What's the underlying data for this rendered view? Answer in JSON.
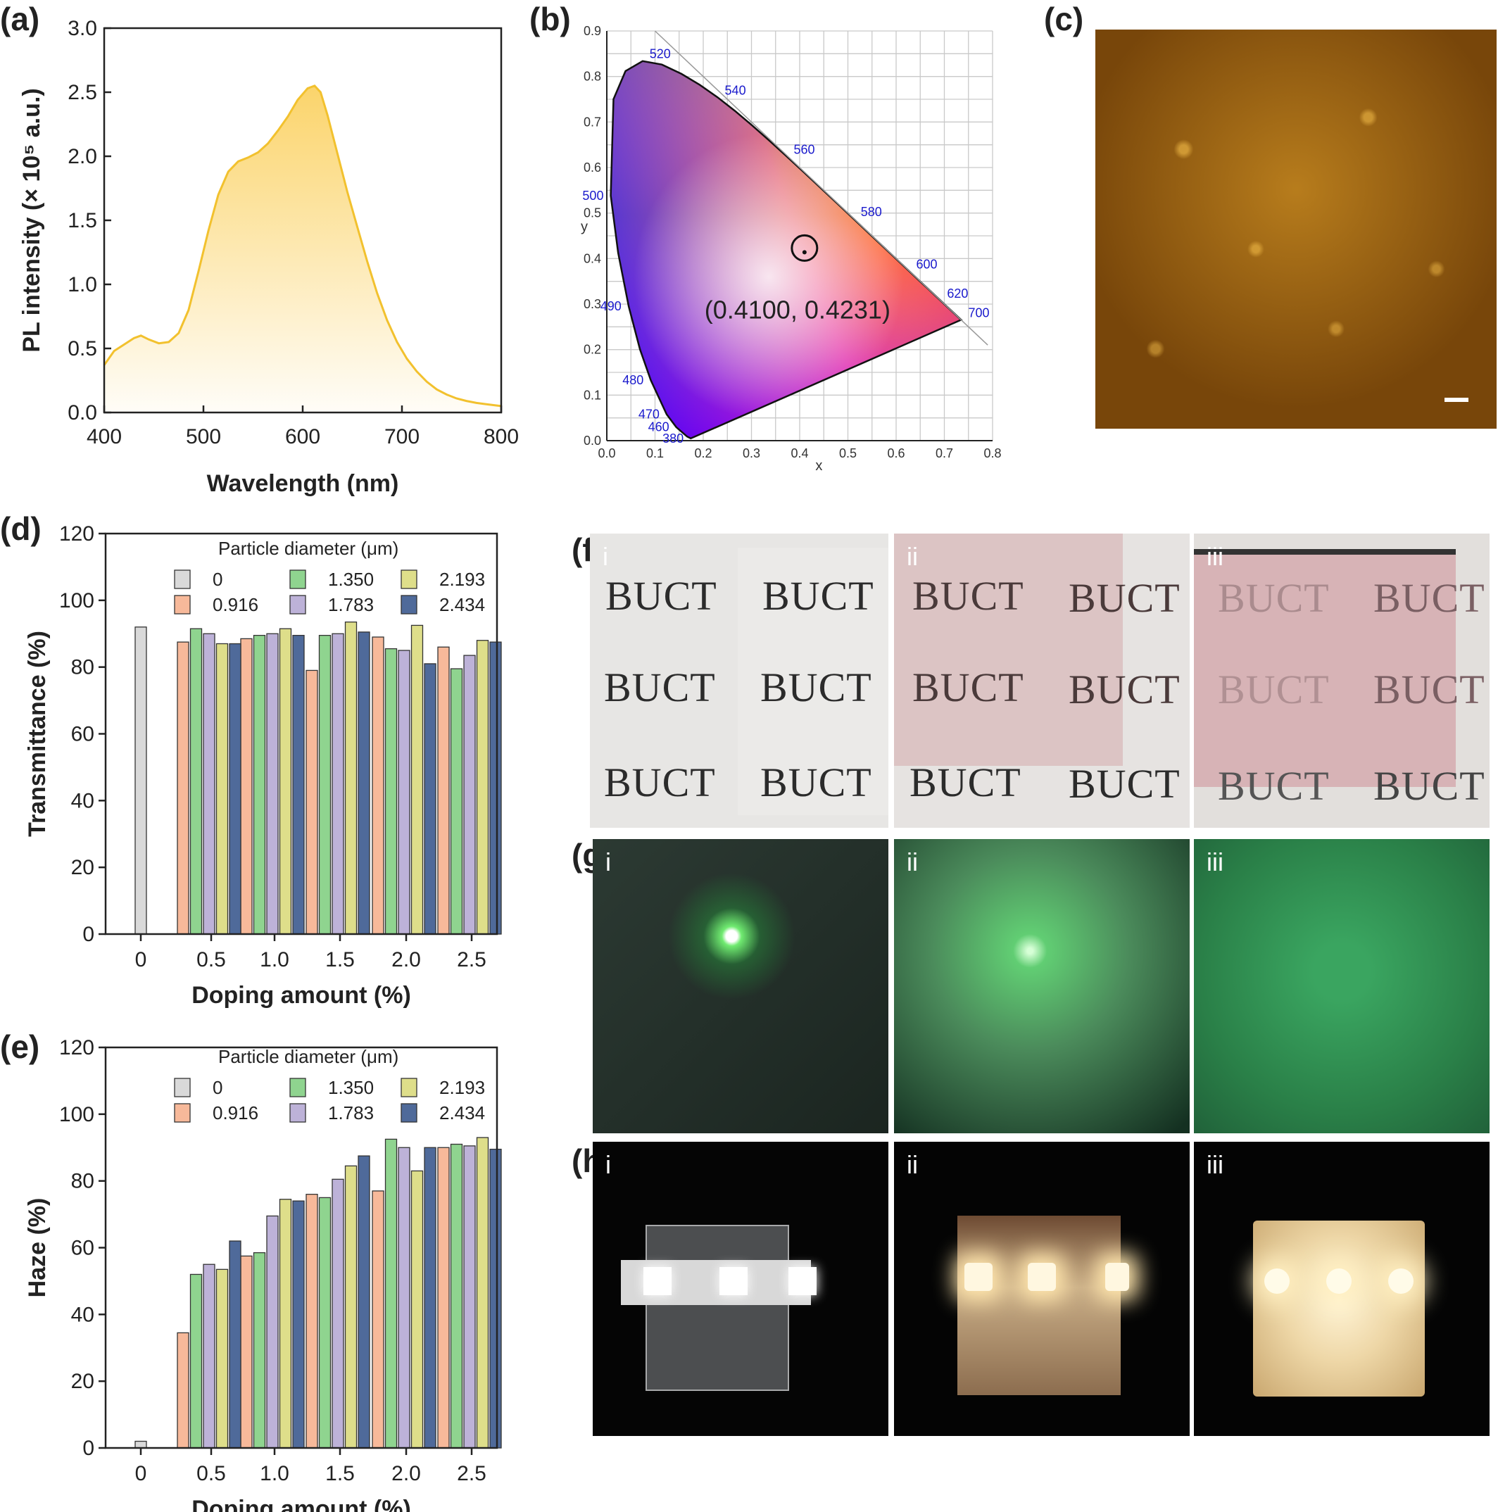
{
  "panels": {
    "a": "(a)",
    "b": "(b)",
    "c": "(c)",
    "d": "(d)",
    "e": "(e)",
    "f": "(f)",
    "g": "(g)",
    "h": "(h)"
  },
  "chart_data": [
    {
      "panel": "a",
      "type": "area",
      "xlabel": "Wavelength (nm)",
      "ylabel": "PL intensity (× 10⁵ a.u.)",
      "xlim": [
        400,
        800
      ],
      "ylim": [
        0,
        3.0
      ],
      "x_ticks": [
        "400",
        "500",
        "600",
        "700",
        "800"
      ],
      "y_ticks": [
        "0.0",
        "0.5",
        "1.0",
        "1.5",
        "2.0",
        "2.5",
        "3.0"
      ],
      "x": [
        400,
        410,
        420,
        430,
        437,
        445,
        455,
        465,
        475,
        485,
        495,
        505,
        515,
        525,
        535,
        545,
        555,
        565,
        575,
        585,
        595,
        605,
        612,
        618,
        625,
        635,
        645,
        655,
        665,
        675,
        685,
        695,
        705,
        715,
        725,
        735,
        745,
        755,
        765,
        775,
        785,
        800
      ],
      "y": [
        0.37,
        0.48,
        0.53,
        0.58,
        0.6,
        0.57,
        0.54,
        0.55,
        0.62,
        0.8,
        1.1,
        1.42,
        1.7,
        1.88,
        1.96,
        1.99,
        2.03,
        2.1,
        2.2,
        2.31,
        2.44,
        2.53,
        2.55,
        2.5,
        2.32,
        2.02,
        1.72,
        1.45,
        1.18,
        0.93,
        0.72,
        0.55,
        0.42,
        0.32,
        0.24,
        0.18,
        0.14,
        0.11,
        0.09,
        0.075,
        0.065,
        0.05
      ],
      "line_color": "#f2c12e",
      "fill_color": "#fbd46b",
      "grid": false
    },
    {
      "panel": "b",
      "type": "scatter",
      "xlabel": "x",
      "ylabel": "y",
      "xlim": [
        0.0,
        0.8
      ],
      "ylim": [
        0.0,
        0.9
      ],
      "x_ticks": [
        "0.0",
        "0.1",
        "0.2",
        "0.3",
        "0.4",
        "0.5",
        "0.6",
        "0.7",
        "0.8"
      ],
      "y_ticks": [
        "0.0",
        "0.1",
        "0.2",
        "0.3",
        "0.4",
        "0.5",
        "0.6",
        "0.7",
        "0.8",
        "0.9"
      ],
      "wavelength_labels": [
        {
          "text": "520",
          "x": 0.074,
          "y": 0.834
        },
        {
          "text": "540",
          "x": 0.23,
          "y": 0.754
        },
        {
          "text": "560",
          "x": 0.373,
          "y": 0.624
        },
        {
          "text": "580",
          "x": 0.512,
          "y": 0.487
        },
        {
          "text": "600",
          "x": 0.627,
          "y": 0.372
        },
        {
          "text": "620",
          "x": 0.691,
          "y": 0.308
        },
        {
          "text": "700",
          "x": 0.735,
          "y": 0.265
        },
        {
          "text": "500",
          "x": 0.008,
          "y": 0.538
        },
        {
          "text": "490",
          "x": 0.045,
          "y": 0.295
        },
        {
          "text": "480",
          "x": 0.091,
          "y": 0.133
        },
        {
          "text": "470",
          "x": 0.124,
          "y": 0.058
        },
        {
          "text": "460",
          "x": 0.144,
          "y": 0.03
        },
        {
          "text": "380",
          "x": 0.174,
          "y": 0.005
        }
      ],
      "point": {
        "x": 0.41,
        "y": 0.4231,
        "label": "(0.4100, 0.4231)"
      },
      "grid": true
    },
    {
      "panel": "d",
      "type": "bar",
      "xlabel": "Doping amount (%)",
      "ylabel": "Transmittance (%)",
      "ylim": [
        0,
        120
      ],
      "y_ticks": [
        "0",
        "20",
        "40",
        "60",
        "80",
        "100",
        "120"
      ],
      "categories": [
        "0",
        "0.5",
        "1.0",
        "1.5",
        "2.0",
        "2.5"
      ],
      "legend_title": "Particle diameter (μm)",
      "legend_placement": "top-right",
      "series": [
        {
          "name": "0",
          "color": "#d9d9d9",
          "values": [
            92,
            null,
            null,
            null,
            null,
            null
          ]
        },
        {
          "name": "0.916",
          "color": "#f7b99a",
          "values": [
            null,
            87.5,
            88.5,
            79,
            89,
            86
          ]
        },
        {
          "name": "1.350",
          "color": "#8fd48f",
          "values": [
            null,
            91.5,
            89.5,
            89.5,
            85.5,
            79.5
          ]
        },
        {
          "name": "1.783",
          "color": "#bdb2d8",
          "values": [
            null,
            90,
            90,
            90,
            85,
            83.5
          ]
        },
        {
          "name": "2.193",
          "color": "#dede8a",
          "values": [
            null,
            87,
            91.5,
            93.5,
            92.5,
            88
          ]
        },
        {
          "name": "2.434",
          "color": "#4f6a9a",
          "values": [
            null,
            87,
            89.5,
            90.5,
            81,
            87.5
          ]
        }
      ],
      "grid": false
    },
    {
      "panel": "e",
      "type": "bar",
      "xlabel": "Doping amount (%)",
      "ylabel": "Haze (%)",
      "ylim": [
        0,
        120
      ],
      "y_ticks": [
        "0",
        "20",
        "40",
        "60",
        "80",
        "100",
        "120"
      ],
      "categories": [
        "0",
        "0.5",
        "1.0",
        "1.5",
        "2.0",
        "2.5"
      ],
      "legend_title": "Particle diameter (μm)",
      "legend_placement": "top-right",
      "series": [
        {
          "name": "0",
          "color": "#d9d9d9",
          "values": [
            2,
            null,
            null,
            null,
            null,
            null
          ]
        },
        {
          "name": "0.916",
          "color": "#f7b99a",
          "values": [
            null,
            34.5,
            57.5,
            76,
            77,
            90
          ]
        },
        {
          "name": "1.350",
          "color": "#8fd48f",
          "values": [
            null,
            52,
            58.5,
            75,
            92.5,
            91
          ]
        },
        {
          "name": "1.783",
          "color": "#bdb2d8",
          "values": [
            null,
            55,
            69.5,
            80.5,
            90,
            90.5
          ]
        },
        {
          "name": "2.193",
          "color": "#dede8a",
          "values": [
            null,
            53.5,
            74.5,
            84.5,
            83,
            93
          ]
        },
        {
          "name": "2.434",
          "color": "#4f6a9a",
          "values": [
            null,
            62,
            74,
            87.5,
            90,
            89.5
          ]
        }
      ],
      "grid": false
    }
  ],
  "photos": {
    "f": {
      "labels": [
        "i",
        "ii",
        "iii"
      ],
      "text": "BUCT"
    },
    "g": {
      "labels": [
        "i",
        "ii",
        "iii"
      ]
    },
    "h": {
      "labels": [
        "i",
        "ii",
        "iii"
      ]
    }
  }
}
